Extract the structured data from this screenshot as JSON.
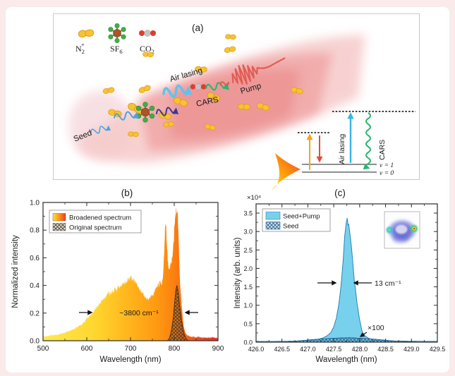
{
  "figure": {
    "background_color": "#fbeaea",
    "card_color": "#ffffff"
  },
  "panel_a": {
    "label": "(a)",
    "molecule_legend": {
      "n2": {
        "base": "N",
        "sub": "2",
        "sup": "+"
      },
      "sf6": {
        "base": "SF",
        "sub": "6"
      },
      "co2": {
        "base": "CO",
        "sub": "2"
      }
    },
    "beam_labels": {
      "seed": "Seed",
      "air_lasing": "Air lasing",
      "cars": "CARS",
      "pump": "Pump"
    },
    "energy_diagram": {
      "air_lasing": "Air lasing",
      "cars": "CARS",
      "v1": "v = 1",
      "v0": "v = 0"
    }
  },
  "chart_data": [
    {
      "panel": "(b)",
      "type": "area",
      "xlabel": "Wavelength (nm)",
      "ylabel": "Normalized intensity",
      "xlim": [
        500,
        900
      ],
      "ylim": [
        0,
        1.0
      ],
      "grid": false,
      "legend_position": "top-left",
      "x_ticks": [
        {
          "v": 500,
          "label": "500"
        },
        {
          "v": 600,
          "label": "600"
        },
        {
          "v": 700,
          "label": "700"
        },
        {
          "v": 800,
          "label": "800"
        },
        {
          "v": 900,
          "label": "900"
        }
      ],
      "x_minor": [
        550,
        650,
        750,
        850
      ],
      "y_ticks": [
        {
          "v": 0.0,
          "label": "0.0"
        },
        {
          "v": 0.2,
          "label": "0.2"
        },
        {
          "v": 0.4,
          "label": "0.4"
        },
        {
          "v": 0.6,
          "label": "0.6"
        },
        {
          "v": 0.8,
          "label": "0.8"
        },
        {
          "v": 1.0,
          "label": "1.0"
        }
      ],
      "y_minor": [
        0.1,
        0.3,
        0.5,
        0.7,
        0.9
      ],
      "legend": [
        {
          "label": "Broadened spectrum",
          "style": "gradient-yellow-red"
        },
        {
          "label": "Original spectrum",
          "style": "hatched-gray"
        }
      ],
      "annotation": {
        "text": "~3800 cm⁻¹"
      },
      "series": [
        {
          "name": "Broadened spectrum",
          "x": [
            500,
            520,
            540,
            560,
            575,
            590,
            600,
            610,
            620,
            630,
            640,
            650,
            660,
            670,
            680,
            690,
            700,
            705,
            710,
            715,
            720,
            725,
            730,
            735,
            740,
            745,
            750,
            755,
            760,
            765,
            768,
            771,
            774,
            777,
            779,
            781,
            783,
            785,
            788,
            791,
            794,
            797,
            800,
            802,
            804,
            806,
            808,
            810,
            812,
            814,
            816,
            818,
            820,
            822,
            825,
            828,
            832,
            836,
            840,
            848,
            856,
            864,
            872,
            880,
            890,
            900
          ],
          "y": [
            0.03,
            0.04,
            0.05,
            0.07,
            0.09,
            0.12,
            0.16,
            0.19,
            0.23,
            0.27,
            0.31,
            0.34,
            0.36,
            0.38,
            0.4,
            0.43,
            0.455,
            0.445,
            0.43,
            0.4,
            0.375,
            0.35,
            0.33,
            0.315,
            0.305,
            0.31,
            0.33,
            0.36,
            0.385,
            0.41,
            0.42,
            0.41,
            0.45,
            0.62,
            0.8,
            0.84,
            0.72,
            0.58,
            0.52,
            0.54,
            0.58,
            0.65,
            0.78,
            0.88,
            0.95,
            0.97,
            0.88,
            0.73,
            0.52,
            0.38,
            0.3,
            0.22,
            0.15,
            0.1,
            0.06,
            0.045,
            0.035,
            0.03,
            0.03,
            0.025,
            0.03,
            0.02,
            0.025,
            0.02,
            0.025,
            0.02
          ]
        },
        {
          "name": "Original spectrum",
          "x": [
            785,
            789,
            792,
            795,
            798,
            800,
            802,
            804,
            806,
            808,
            810,
            812,
            814,
            816,
            818,
            820,
            822,
            824,
            826,
            829,
            832
          ],
          "y": [
            0.0,
            0.02,
            0.05,
            0.1,
            0.17,
            0.24,
            0.31,
            0.37,
            0.4,
            0.37,
            0.32,
            0.26,
            0.21,
            0.16,
            0.12,
            0.08,
            0.055,
            0.035,
            0.02,
            0.008,
            0.0
          ]
        }
      ]
    },
    {
      "panel": "(c)",
      "type": "area",
      "xlabel": "Wavelength (nm)",
      "ylabel": "Intensity (arb. units)",
      "scale_label": "×10⁴",
      "xlim": [
        426.0,
        429.5
      ],
      "ylim": [
        0,
        3.75
      ],
      "grid": false,
      "legend_position": "top-left",
      "x_ticks": [
        {
          "v": 426.0,
          "label": "426.0"
        },
        {
          "v": 426.5,
          "label": "426.5"
        },
        {
          "v": 427.0,
          "label": "427.0"
        },
        {
          "v": 427.5,
          "label": "427.5"
        },
        {
          "v": 428.0,
          "label": "428.0"
        },
        {
          "v": 428.5,
          "label": "428.5"
        },
        {
          "v": 429.0,
          "label": "429.0"
        },
        {
          "v": 429.5,
          "label": "429.5"
        }
      ],
      "x_minor": [
        426.25,
        426.75,
        427.25,
        427.75,
        428.25,
        428.75,
        429.25
      ],
      "y_ticks": [
        {
          "v": 0.0,
          "label": "0.0"
        },
        {
          "v": 0.5,
          "label": "0.5"
        },
        {
          "v": 1.0,
          "label": "1.0"
        },
        {
          "v": 1.5,
          "label": "1.5"
        },
        {
          "v": 2.0,
          "label": "2.0"
        },
        {
          "v": 2.5,
          "label": "2.5"
        },
        {
          "v": 3.0,
          "label": "3.0"
        },
        {
          "v": 3.5,
          "label": "3.5"
        }
      ],
      "y_minor": [
        0.25,
        0.75,
        1.25,
        1.75,
        2.25,
        2.75,
        3.25
      ],
      "legend": [
        {
          "label": "Seed+Pump",
          "style": "solid-cyan"
        },
        {
          "label": "Seed",
          "style": "hatched-blue"
        }
      ],
      "annotations": {
        "width": {
          "text": "13 cm⁻¹"
        },
        "magnification": {
          "text": "×100"
        }
      },
      "inset": {
        "name": "beam-profile-image"
      },
      "series": [
        {
          "name": "Seed+Pump",
          "x": [
            426.0,
            426.3,
            426.6,
            426.8,
            427.0,
            427.1,
            427.2,
            427.3,
            427.38,
            427.45,
            427.5,
            427.55,
            427.6,
            427.64,
            427.68,
            427.71,
            427.74,
            427.76,
            427.79,
            427.82,
            427.86,
            427.9,
            427.95,
            428.0,
            428.05,
            428.1,
            428.15,
            428.2,
            428.3,
            428.4,
            428.55,
            428.7,
            428.9,
            429.1,
            429.3,
            429.5
          ],
          "y": [
            0.02,
            0.02,
            0.025,
            0.03,
            0.05,
            0.06,
            0.08,
            0.12,
            0.18,
            0.28,
            0.42,
            0.65,
            1.05,
            1.55,
            2.2,
            2.85,
            3.2,
            3.3,
            3.18,
            2.85,
            2.3,
            1.65,
            1.05,
            0.6,
            0.28,
            0.17,
            0.12,
            0.09,
            0.055,
            0.04,
            0.035,
            0.03,
            0.028,
            0.025,
            0.02,
            0.02
          ]
        },
        {
          "name": "Seed",
          "x": [
            426.55,
            426.7,
            426.9,
            427.1,
            427.3,
            427.5,
            427.65,
            427.8,
            427.95,
            428.1,
            428.25,
            428.4,
            428.55,
            428.7,
            428.85,
            429.0,
            429.15
          ],
          "y": [
            0.0,
            0.02,
            0.045,
            0.07,
            0.09,
            0.105,
            0.115,
            0.12,
            0.11,
            0.1,
            0.085,
            0.065,
            0.045,
            0.03,
            0.018,
            0.008,
            0.0
          ]
        }
      ]
    }
  ],
  "colors": {
    "beam_core": "#ec9090",
    "n2_yellow": "#f7c233",
    "n2_edge": "#e09b12",
    "sf6_brown": "#a8562b",
    "sf6_green": "#3fae4c",
    "co2_red": "#e23b2e",
    "co2_gray": "#c4c4c4",
    "seed_blue": "#4da3e0",
    "navy_wave": "#3a3a8c",
    "air_lasing_cyan": "#38b6e3",
    "cars_green": "#29b670",
    "pump_red": "#e05b52",
    "pump_arrow_orange": "#f2a51c",
    "stokes_arrow_red": "#e64b3a",
    "seed_pump_fill": "#78d1ec",
    "seed_pump_stroke": "#2b85b5",
    "annotation_maroon": "#8a2b0a"
  }
}
